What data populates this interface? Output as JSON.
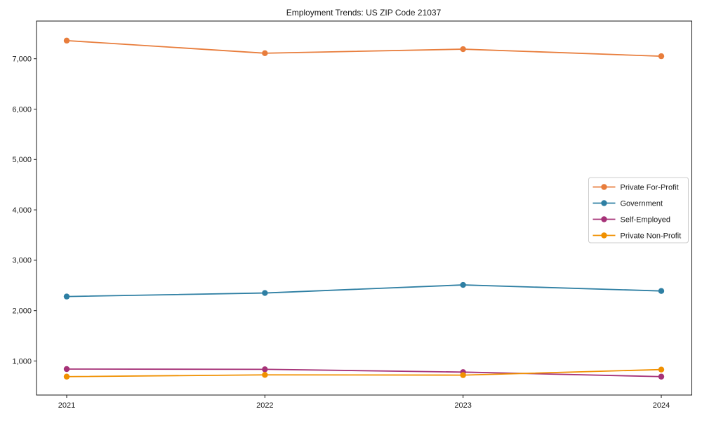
{
  "chart_data": {
    "type": "line",
    "title": "Employment Trends: US ZIP Code 21037",
    "x": [
      2021,
      2022,
      2023,
      2024
    ],
    "xtick_labels": [
      "2021",
      "2022",
      "2023",
      "2024"
    ],
    "series": [
      {
        "name": "Private For-Profit",
        "color": "#E87D3C",
        "values": [
          7360,
          7110,
          7190,
          7050
        ]
      },
      {
        "name": "Government",
        "color": "#2E7FA3",
        "values": [
          2280,
          2350,
          2510,
          2390
        ]
      },
      {
        "name": "Self-Employed",
        "color": "#A63278",
        "values": [
          840,
          835,
          780,
          690
        ]
      },
      {
        "name": "Private Non-Profit",
        "color": "#F09000",
        "values": [
          690,
          725,
          720,
          830
        ]
      }
    ],
    "yticks": [
      1000,
      2000,
      3000,
      4000,
      5000,
      6000,
      7000
    ],
    "ytick_labels": [
      "1,000",
      "2,000",
      "3,000",
      "4,000",
      "5,000",
      "6,000",
      "7,000"
    ],
    "ylim": [
      325,
      7750
    ],
    "xlabel": "",
    "ylabel": "",
    "grid": false,
    "legend_position": "center right",
    "legend_labels": [
      "Private For-Profit",
      "Government",
      "Self-Employed",
      "Private Non-Profit"
    ],
    "marker": "circle",
    "axis_color": "#1a1a1a",
    "legend_border_color": "#cccccc",
    "background_color": "#ffffff"
  }
}
